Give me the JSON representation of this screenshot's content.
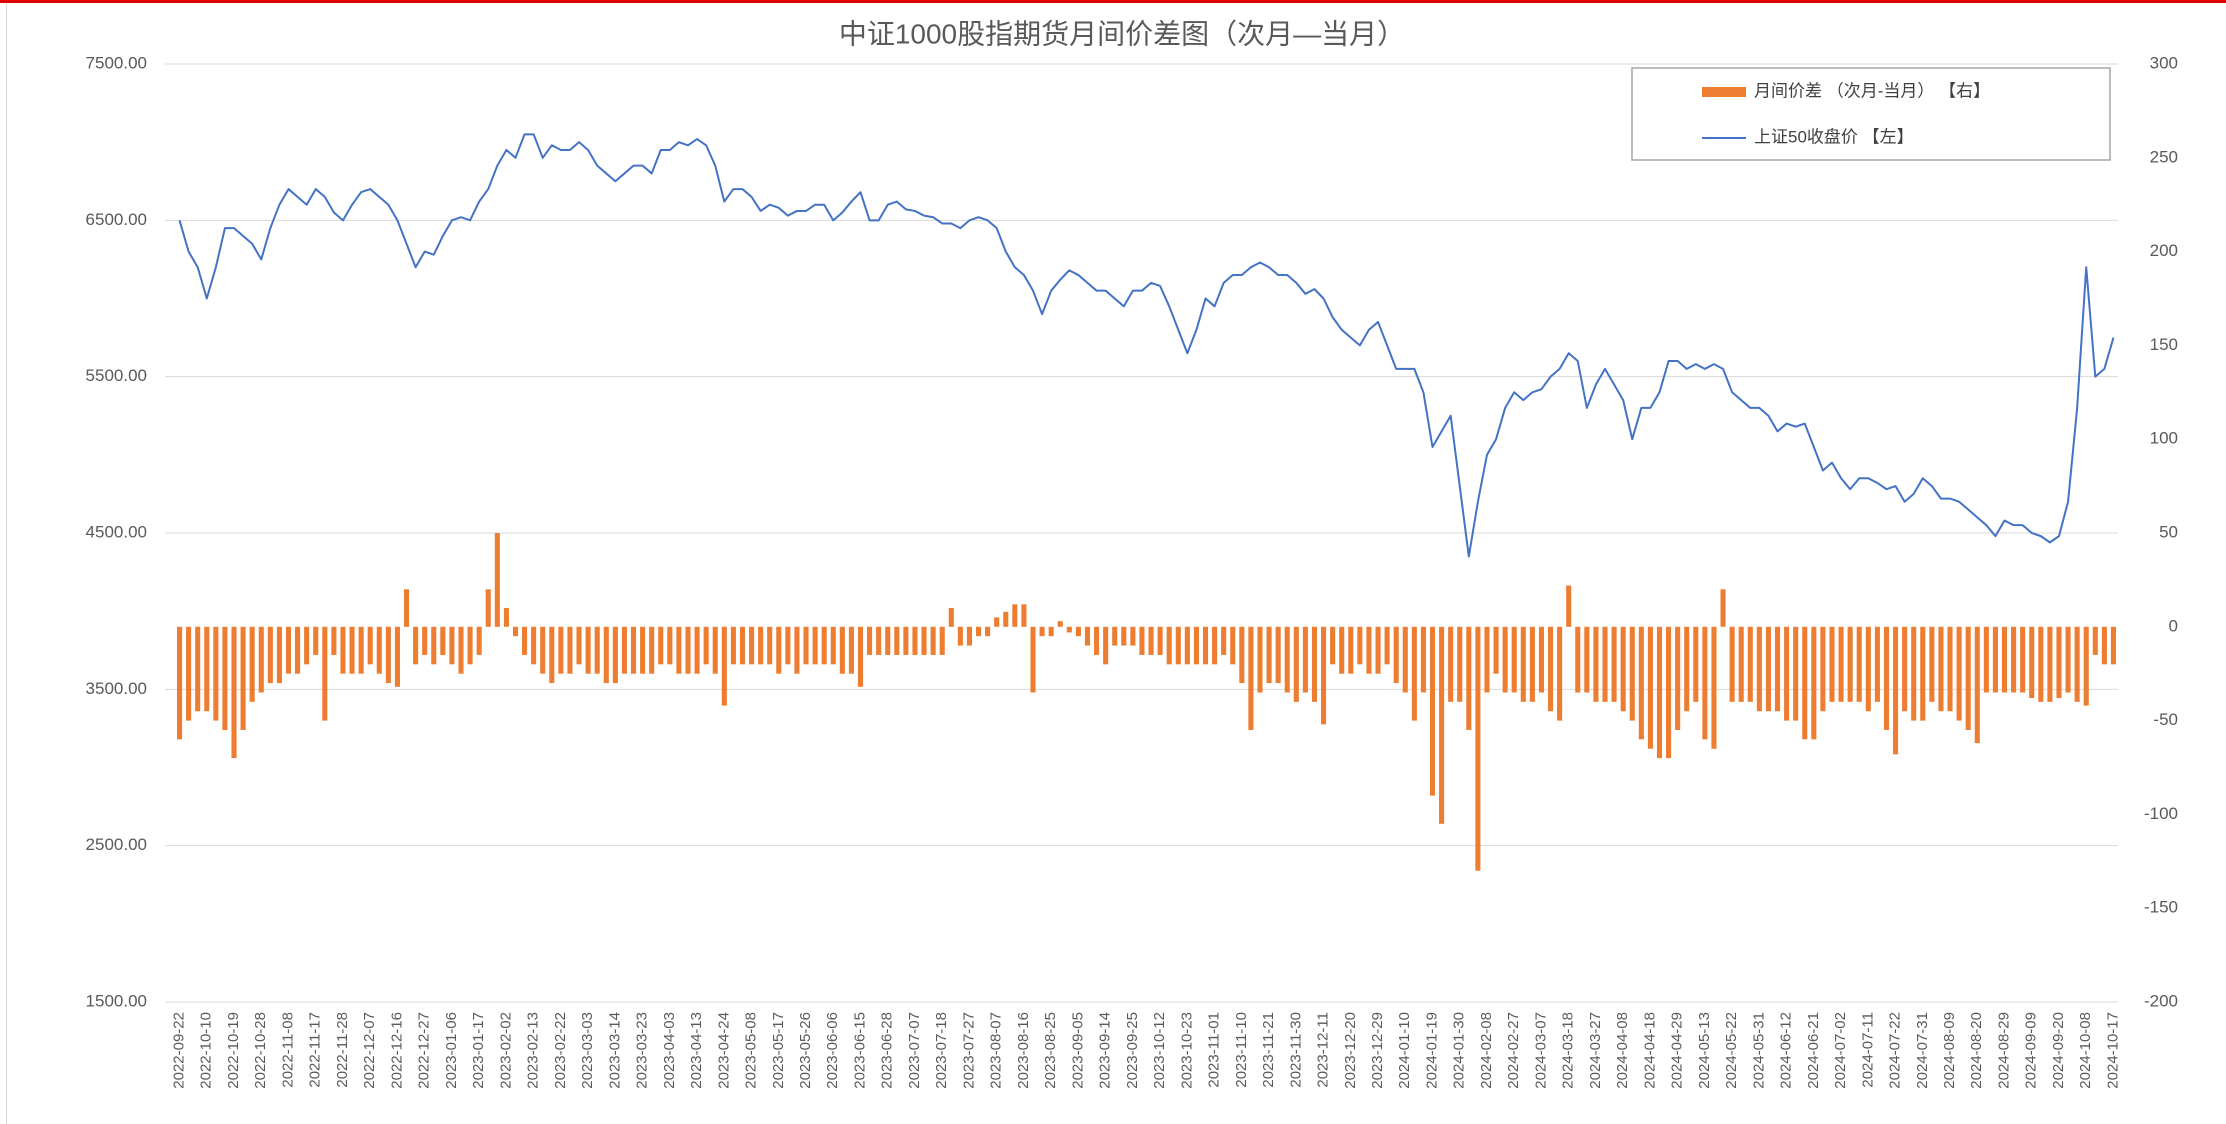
{
  "chart_data": {
    "type": "combo",
    "title": "中证1000股指期货月间价差图（次月—当月）",
    "categories": [
      "2022-09-22",
      null,
      null,
      "2022-10-10",
      null,
      null,
      "2022-10-19",
      null,
      null,
      "2022-10-28",
      null,
      null,
      "2022-11-08",
      null,
      null,
      "2022-11-17",
      null,
      null,
      "2022-11-28",
      null,
      null,
      "2022-12-07",
      null,
      null,
      "2022-12-16",
      null,
      null,
      "2022-12-27",
      null,
      null,
      "2023-01-06",
      null,
      null,
      "2023-01-17",
      null,
      null,
      "2023-02-02",
      null,
      null,
      "2023-02-13",
      null,
      null,
      "2023-02-22",
      null,
      null,
      "2023-03-03",
      null,
      null,
      "2023-03-14",
      null,
      null,
      "2023-03-23",
      null,
      null,
      "2023-04-03",
      null,
      null,
      "2023-04-13",
      null,
      null,
      "2023-04-24",
      null,
      null,
      "2023-05-08",
      null,
      null,
      "2023-05-17",
      null,
      null,
      "2023-05-26",
      null,
      null,
      "2023-06-06",
      null,
      null,
      "2023-06-15",
      null,
      null,
      "2023-06-28",
      null,
      null,
      "2023-07-07",
      null,
      null,
      "2023-07-18",
      null,
      null,
      "2023-07-27",
      null,
      null,
      "2023-08-07",
      null,
      null,
      "2023-08-16",
      null,
      null,
      "2023-08-25",
      null,
      null,
      "2023-09-05",
      null,
      null,
      "2023-09-14",
      null,
      null,
      "2023-09-25",
      null,
      null,
      "2023-10-12",
      null,
      null,
      "2023-10-23",
      null,
      null,
      "2023-11-01",
      null,
      null,
      "2023-11-10",
      null,
      null,
      "2023-11-21",
      null,
      null,
      "2023-11-30",
      null,
      null,
      "2023-12-11",
      null,
      null,
      "2023-12-20",
      null,
      null,
      "2023-12-29",
      null,
      null,
      "2024-01-10",
      null,
      null,
      "2024-01-19",
      null,
      null,
      "2024-01-30",
      null,
      null,
      "2024-02-08",
      null,
      null,
      "2024-02-27",
      null,
      null,
      "2024-03-07",
      null,
      null,
      "2024-03-18",
      null,
      null,
      "2024-03-27",
      null,
      null,
      "2024-04-08",
      null,
      null,
      "2024-04-18",
      null,
      null,
      "2024-04-29",
      null,
      null,
      "2024-05-13",
      null,
      null,
      "2024-05-22",
      null,
      null,
      "2024-05-31",
      null,
      null,
      "2024-06-12",
      null,
      null,
      "2024-06-21",
      null,
      null,
      "2024-07-02",
      null,
      null,
      "2024-07-11",
      null,
      null,
      "2024-07-22",
      null,
      null,
      "2024-07-31",
      null,
      null,
      "2024-08-09",
      null,
      null,
      "2024-08-20",
      null,
      null,
      "2024-08-29",
      null,
      null,
      "2024-09-09",
      null,
      null,
      "2024-09-20",
      null,
      null,
      "2024-10-08",
      null,
      null,
      "2024-10-17"
    ],
    "series": [
      {
        "name": "月间价差 （次月-当月） 【右】",
        "type": "bar",
        "axis": "y2",
        "color": "#ed7d31",
        "values": [
          -60,
          -50,
          -45,
          -45,
          -50,
          -55,
          -70,
          -55,
          -40,
          -35,
          -30,
          -30,
          -25,
          -25,
          -20,
          -15,
          -50,
          -15,
          -25,
          -25,
          -25,
          -20,
          -25,
          -30,
          -32,
          20,
          -20,
          -15,
          -20,
          -15,
          -20,
          -25,
          -20,
          -15,
          20,
          50,
          10,
          -5,
          -15,
          -20,
          -25,
          -30,
          -25,
          -25,
          -20,
          -25,
          -25,
          -30,
          -30,
          -25,
          -25,
          -25,
          -25,
          -20,
          -20,
          -25,
          -25,
          -25,
          -20,
          -25,
          -42,
          -20,
          -20,
          -20,
          -20,
          -20,
          -25,
          -20,
          -25,
          -20,
          -20,
          -20,
          -20,
          -25,
          -25,
          -32,
          -15,
          -15,
          -15,
          -15,
          -15,
          -15,
          -15,
          -15,
          -15,
          10,
          -10,
          -10,
          -5,
          -5,
          5,
          8,
          12,
          12,
          -35,
          -5,
          -5,
          3,
          -3,
          -5,
          -10,
          -15,
          -20,
          -10,
          -10,
          -10,
          -15,
          -15,
          -15,
          -20,
          -20,
          -20,
          -20,
          -20,
          -20,
          -15,
          -20,
          -30,
          -55,
          -35,
          -30,
          -30,
          -35,
          -40,
          -35,
          -40,
          -52,
          -20,
          -25,
          -25,
          -20,
          -25,
          -25,
          -20,
          -30,
          -35,
          -50,
          -35,
          -90,
          -105,
          -40,
          -40,
          -55,
          -130,
          -35,
          -25,
          -35,
          -35,
          -40,
          -40,
          -35,
          -45,
          -50,
          22,
          -35,
          -35,
          -40,
          -40,
          -40,
          -45,
          -50,
          -60,
          -65,
          -70,
          -70,
          -55,
          -45,
          -40,
          -60,
          -65,
          20,
          -40,
          -40,
          -40,
          -45,
          -45,
          -45,
          -50,
          -50,
          -60,
          -60,
          -45,
          -40,
          -40,
          -40,
          -40,
          -45,
          -40,
          -55,
          -68,
          -45,
          -50,
          -50,
          -40,
          -45,
          -45,
          -50,
          -55,
          -62,
          -35,
          -35,
          -35,
          -35,
          -35,
          -38,
          -40,
          -40,
          -38,
          -35,
          -40,
          -42,
          -15,
          -20,
          -20
        ]
      },
      {
        "name": "上证50收盘价 【左】",
        "type": "line",
        "axis": "y",
        "color": "#4472c4",
        "values": [
          6500,
          6300,
          6200,
          6000,
          6200,
          6450,
          6450,
          6400,
          6350,
          6250,
          6450,
          6600,
          6700,
          6650,
          6600,
          6700,
          6650,
          6550,
          6500,
          6600,
          6680,
          6700,
          6650,
          6600,
          6500,
          6350,
          6200,
          6300,
          6280,
          6400,
          6500,
          6520,
          6500,
          6620,
          6700,
          6850,
          6950,
          6900,
          7050,
          7050,
          6900,
          6980,
          6950,
          6950,
          7000,
          6950,
          6850,
          6800,
          6750,
          6800,
          6850,
          6850,
          6800,
          6950,
          6950,
          7000,
          6980,
          7020,
          6980,
          6850,
          6620,
          6700,
          6700,
          6650,
          6560,
          6600,
          6580,
          6530,
          6560,
          6560,
          6600,
          6600,
          6500,
          6550,
          6620,
          6680,
          6500,
          6500,
          6600,
          6620,
          6570,
          6560,
          6530,
          6520,
          6480,
          6480,
          6450,
          6500,
          6520,
          6500,
          6450,
          6300,
          6200,
          6150,
          6050,
          5900,
          6050,
          6120,
          6180,
          6150,
          6100,
          6050,
          6050,
          6000,
          5950,
          6050,
          6050,
          6100,
          6080,
          5950,
          5800,
          5650,
          5800,
          6000,
          5950,
          6100,
          6150,
          6150,
          6200,
          6230,
          6200,
          6150,
          6150,
          6100,
          6030,
          6060,
          6000,
          5880,
          5800,
          5750,
          5700,
          5800,
          5850,
          5700,
          5550,
          5550,
          5550,
          5400,
          5050,
          5150,
          5250,
          4800,
          4350,
          4700,
          5000,
          5100,
          5300,
          5400,
          5350,
          5400,
          5420,
          5500,
          5550,
          5650,
          5600,
          5300,
          5450,
          5550,
          5450,
          5350,
          5100,
          5300,
          5300,
          5400,
          5600,
          5600,
          5550,
          5580,
          5550,
          5580,
          5550,
          5400,
          5350,
          5300,
          5300,
          5250,
          5150,
          5200,
          5180,
          5200,
          5050,
          4900,
          4950,
          4850,
          4780,
          4850,
          4850,
          4820,
          4780,
          4800,
          4700,
          4750,
          4850,
          4800,
          4720,
          4720,
          4700,
          4650,
          4600,
          4550,
          4480,
          4580,
          4550,
          4550,
          4500,
          4480,
          4440,
          4480,
          4700,
          5300,
          6200,
          5500,
          5550,
          5750
        ]
      }
    ],
    "ylim": [
      1500,
      7500
    ],
    "yticks": [
      {
        "value": 1500,
        "label": "1500.00"
      },
      {
        "value": 2500,
        "label": "2500.00"
      },
      {
        "value": 3500,
        "label": "3500.00"
      },
      {
        "value": 4500,
        "label": "4500.00"
      },
      {
        "value": 5500,
        "label": "5500.00"
      },
      {
        "value": 6500,
        "label": "6500.00"
      },
      {
        "value": 7500,
        "label": "7500.00"
      }
    ],
    "y2lim": [
      -200,
      300
    ],
    "y2ticks": [
      -200,
      -150,
      -100,
      -50,
      0,
      50,
      100,
      150,
      200,
      250,
      300
    ],
    "grid": true,
    "legend": "top-right"
  }
}
